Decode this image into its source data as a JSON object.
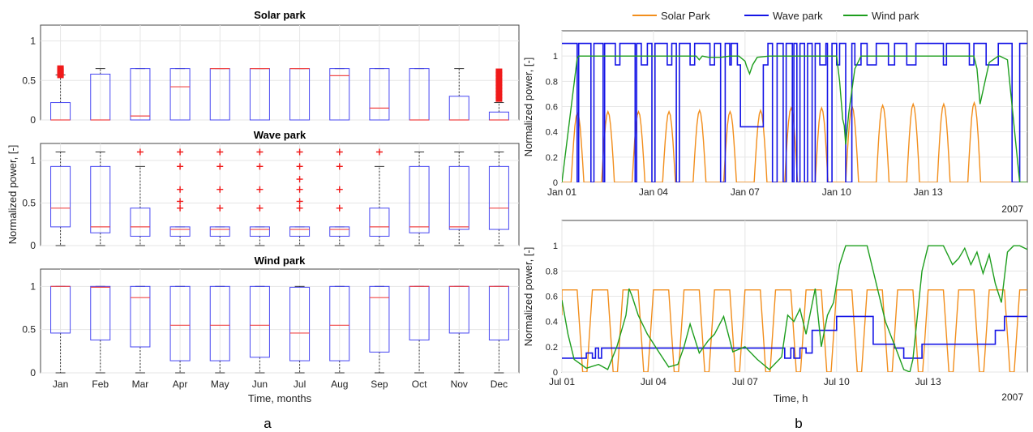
{
  "colors": {
    "solar": "#f28e1c",
    "wave": "#1515e6",
    "wind": "#1e9e1e",
    "box": "#4747f2",
    "median": "#f04848",
    "outlier": "#f01a1a",
    "axis": "#444444",
    "grid": "#e6e6e6"
  },
  "panel_labels": [
    "a",
    "b"
  ],
  "labels": {
    "left_ylabel": "Normalized power, [-]",
    "left_xlabel": "Time, months",
    "right_ylabel": "Normalized power, [-]",
    "right_xlabel": "Time, h"
  },
  "chart_data": [
    {
      "type": "box",
      "title": "Solar park",
      "categories": [
        "Jan",
        "Feb",
        "Mar",
        "Apr",
        "May",
        "Jun",
        "Jul",
        "Aug",
        "Sep",
        "Oct",
        "Nov",
        "Dec"
      ],
      "ylim": [
        0,
        1.2
      ],
      "yticks": [
        0,
        0.5,
        1
      ],
      "yticklabels": [
        "0",
        "0.5",
        "1"
      ],
      "grid": true,
      "boxes": [
        {
          "q1": 0,
          "med": 0,
          "q3": 0.22,
          "wlo": 0,
          "whi": 0.57,
          "out": [
            0.56,
            0.58,
            0.6,
            0.62,
            0.64,
            0.66
          ]
        },
        {
          "q1": 0,
          "med": 0,
          "q3": 0.58,
          "wlo": 0,
          "whi": 0.65,
          "out": []
        },
        {
          "q1": 0,
          "med": 0.05,
          "q3": 0.65,
          "wlo": 0,
          "whi": 0.65,
          "out": []
        },
        {
          "q1": 0,
          "med": 0.42,
          "q3": 0.65,
          "wlo": 0,
          "whi": 0.65,
          "out": []
        },
        {
          "q1": 0,
          "med": 0.65,
          "q3": 0.65,
          "wlo": 0,
          "whi": 0.65,
          "out": []
        },
        {
          "q1": 0,
          "med": 0.65,
          "q3": 0.65,
          "wlo": 0,
          "whi": 0.65,
          "out": []
        },
        {
          "q1": 0,
          "med": 0.65,
          "q3": 0.65,
          "wlo": 0,
          "whi": 0.65,
          "out": []
        },
        {
          "q1": 0,
          "med": 0.56,
          "q3": 0.65,
          "wlo": 0,
          "whi": 0.65,
          "out": []
        },
        {
          "q1": 0,
          "med": 0.15,
          "q3": 0.65,
          "wlo": 0,
          "whi": 0.65,
          "out": []
        },
        {
          "q1": 0,
          "med": 0,
          "q3": 0.65,
          "wlo": 0,
          "whi": 0.65,
          "out": []
        },
        {
          "q1": 0,
          "med": 0,
          "q3": 0.3,
          "wlo": 0,
          "whi": 0.65,
          "out": []
        },
        {
          "q1": 0,
          "med": 0,
          "q3": 0.1,
          "wlo": 0,
          "whi": 0.22,
          "out": [
            0.26,
            0.3,
            0.34,
            0.38,
            0.42,
            0.46,
            0.5,
            0.54,
            0.58,
            0.62
          ]
        }
      ]
    },
    {
      "type": "box",
      "title": "Wave park",
      "categories": [
        "Jan",
        "Feb",
        "Mar",
        "Apr",
        "May",
        "Jun",
        "Jul",
        "Aug",
        "Sep",
        "Oct",
        "Nov",
        "Dec"
      ],
      "ylim": [
        0,
        1.2
      ],
      "yticks": [
        0,
        0.5,
        1
      ],
      "yticklabels": [
        "0",
        "0.5",
        "1"
      ],
      "grid": true,
      "boxes": [
        {
          "q1": 0.22,
          "med": 0.44,
          "q3": 0.93,
          "wlo": 0,
          "whi": 1.1,
          "out": []
        },
        {
          "q1": 0.15,
          "med": 0.22,
          "q3": 0.93,
          "wlo": 0,
          "whi": 1.1,
          "out": []
        },
        {
          "q1": 0.11,
          "med": 0.22,
          "q3": 0.44,
          "wlo": 0,
          "whi": 0.93,
          "out": [
            1.1
          ]
        },
        {
          "q1": 0.11,
          "med": 0.19,
          "q3": 0.22,
          "wlo": 0,
          "whi": 0.22,
          "out": [
            0.44,
            0.52,
            0.66,
            0.93,
            1.1
          ]
        },
        {
          "q1": 0.11,
          "med": 0.19,
          "q3": 0.22,
          "wlo": 0,
          "whi": 0.22,
          "out": [
            0.44,
            0.66,
            0.93,
            1.1
          ]
        },
        {
          "q1": 0.11,
          "med": 0.19,
          "q3": 0.22,
          "wlo": 0,
          "whi": 0.22,
          "out": [
            0.44,
            0.66,
            0.93,
            1.1
          ]
        },
        {
          "q1": 0.11,
          "med": 0.19,
          "q3": 0.22,
          "wlo": 0,
          "whi": 0.22,
          "out": [
            0.44,
            0.52,
            0.66,
            0.78,
            0.93,
            1.1
          ]
        },
        {
          "q1": 0.11,
          "med": 0.19,
          "q3": 0.22,
          "wlo": 0,
          "whi": 0.22,
          "out": [
            0.44,
            0.66,
            0.93,
            1.1
          ]
        },
        {
          "q1": 0.11,
          "med": 0.22,
          "q3": 0.44,
          "wlo": 0,
          "whi": 0.93,
          "out": [
            1.1
          ]
        },
        {
          "q1": 0.15,
          "med": 0.22,
          "q3": 0.93,
          "wlo": 0,
          "whi": 1.1,
          "out": []
        },
        {
          "q1": 0.19,
          "med": 0.22,
          "q3": 0.93,
          "wlo": 0,
          "whi": 1.1,
          "out": []
        },
        {
          "q1": 0.19,
          "med": 0.44,
          "q3": 0.93,
          "wlo": 0,
          "whi": 1.1,
          "out": []
        }
      ]
    },
    {
      "type": "box",
      "title": "Wind park",
      "categories": [
        "Jan",
        "Feb",
        "Mar",
        "Apr",
        "May",
        "Jun",
        "Jul",
        "Aug",
        "Sep",
        "Oct",
        "Nov",
        "Dec"
      ],
      "ylim": [
        0,
        1.2
      ],
      "yticks": [
        0,
        0.5,
        1
      ],
      "yticklabels": [
        "0",
        "0.5",
        "1"
      ],
      "grid": true,
      "boxes": [
        {
          "q1": 0.46,
          "med": 1.0,
          "q3": 1.0,
          "wlo": 0,
          "whi": 1.0,
          "out": []
        },
        {
          "q1": 0.38,
          "med": 0.99,
          "q3": 1.0,
          "wlo": 0,
          "whi": 1.0,
          "out": []
        },
        {
          "q1": 0.3,
          "med": 0.87,
          "q3": 1.0,
          "wlo": 0,
          "whi": 1.0,
          "out": []
        },
        {
          "q1": 0.14,
          "med": 0.55,
          "q3": 1.0,
          "wlo": 0,
          "whi": 1.0,
          "out": []
        },
        {
          "q1": 0.14,
          "med": 0.55,
          "q3": 1.0,
          "wlo": 0,
          "whi": 1.0,
          "out": []
        },
        {
          "q1": 0.18,
          "med": 0.55,
          "q3": 1.0,
          "wlo": 0,
          "whi": 1.0,
          "out": []
        },
        {
          "q1": 0.14,
          "med": 0.46,
          "q3": 0.99,
          "wlo": 0,
          "whi": 1.0,
          "out": []
        },
        {
          "q1": 0.14,
          "med": 0.55,
          "q3": 1.0,
          "wlo": 0,
          "whi": 1.0,
          "out": []
        },
        {
          "q1": 0.24,
          "med": 0.87,
          "q3": 1.0,
          "wlo": 0,
          "whi": 1.0,
          "out": []
        },
        {
          "q1": 0.38,
          "med": 1.0,
          "q3": 1.0,
          "wlo": 0,
          "whi": 1.0,
          "out": []
        },
        {
          "q1": 0.46,
          "med": 1.0,
          "q3": 1.0,
          "wlo": 0,
          "whi": 1.0,
          "out": []
        },
        {
          "q1": 0.38,
          "med": 1.0,
          "q3": 1.0,
          "wlo": 0,
          "whi": 1.0,
          "out": []
        }
      ]
    },
    {
      "type": "line",
      "xlim": [
        0,
        15.25
      ],
      "ylim": [
        0,
        1.2
      ],
      "yticks": [
        0,
        0.2,
        0.4,
        0.6,
        0.8,
        1
      ],
      "yticklabels": [
        "0",
        "0.2",
        "0.4",
        "0.6",
        "0.8",
        "1"
      ],
      "xticks": [
        0,
        3,
        6,
        9,
        12
      ],
      "xticklabels": [
        "Jan 01",
        "Jan 04",
        "Jan 07",
        "Jan 10",
        "Jan 13"
      ],
      "year_label": "2007",
      "grid": true,
      "legend": {
        "placement": "top",
        "entries": [
          "Solar Park",
          "Wave park",
          "Wind park"
        ]
      },
      "series": [
        {
          "name": "Solar Park",
          "kind": "solar",
          "peaks": [
            0.55,
            0.56,
            0.56,
            0.56,
            0.57,
            0.56,
            0.57,
            0.59,
            0.59,
            0.6,
            0.61,
            0.62,
            0.62,
            0.63
          ]
        },
        {
          "name": "Wave park",
          "kind": "step",
          "x": [
            0,
            0.5,
            0.55,
            0.95,
            1.05,
            1.35,
            1.4,
            1.75,
            1.9,
            2.4,
            2.45,
            2.6,
            2.8,
            2.95,
            3.05,
            3.45,
            3.6,
            3.75,
            3.85,
            4.2,
            4.35,
            4.85,
            5.0,
            5.2,
            5.35,
            5.5,
            5.55,
            5.75,
            5.85,
            6.0,
            6.05,
            6.6,
            6.75,
            6.9,
            7.05,
            7.25,
            7.35,
            7.55,
            7.6,
            7.7,
            7.8,
            7.95,
            8.05,
            8.2,
            8.3,
            8.45,
            8.65,
            8.7,
            8.85,
            9.0,
            9.1,
            9.3,
            9.5,
            9.6,
            9.8,
            10.0,
            10.3,
            10.4,
            10.7,
            10.9,
            11.1,
            11.3,
            11.6,
            11.9,
            12.1,
            12.5,
            12.6,
            12.95,
            13.0,
            13.35,
            13.5,
            13.9,
            14.3,
            14.6,
            14.75,
            15.0,
            15.25
          ],
          "y": [
            1.1,
            0,
            1.1,
            0,
            1.1,
            0,
            1.1,
            0.93,
            1.1,
            0,
            1.1,
            0.93,
            1.1,
            0,
            1.1,
            0.93,
            1.1,
            0,
            1.1,
            0.93,
            1.1,
            0.93,
            1.1,
            0,
            1.1,
            0.93,
            1.1,
            0.93,
            0.44,
            0.44,
            0.44,
            0.93,
            1.1,
            0,
            1.1,
            0,
            1.1,
            0,
            1.1,
            0,
            1.1,
            0,
            1.1,
            0,
            1.1,
            0.93,
            1.1,
            0,
            1.1,
            0.93,
            1.1,
            0,
            1.1,
            0.93,
            1.1,
            0.93,
            1.1,
            1.1,
            0.93,
            1.1,
            1.1,
            0.93,
            1.1,
            1.1,
            1.1,
            0.93,
            1.1,
            1.1,
            1.1,
            0.93,
            1.1,
            0.93,
            1.1,
            1.1,
            0,
            1.1,
            1.1
          ]
        },
        {
          "name": "Wind park",
          "kind": "line",
          "x": [
            0,
            0.5,
            0.55,
            0.6,
            0.7,
            1.5,
            2.5,
            3.5,
            4.4,
            4.5,
            4.6,
            4.8,
            5.2,
            5.5,
            5.8,
            6.0,
            6.05,
            6.15,
            6.25,
            6.4,
            6.8,
            8.0,
            8.6,
            9.0,
            9.1,
            9.2,
            9.25,
            9.3,
            9.4,
            9.6,
            9.8,
            10.0,
            10.2,
            11.0,
            12.0,
            12.5,
            13.0,
            13.2,
            13.5,
            13.6,
            13.7,
            14.0,
            14.3,
            14.35,
            14.6,
            15.0,
            15.1,
            15.25
          ],
          "y": [
            0,
            0.98,
            1.0,
            1.0,
            1.0,
            1.0,
            1.0,
            1.0,
            1.0,
            0.97,
            1.0,
            0.99,
            0.99,
            1.0,
            1.0,
            0.96,
            0.92,
            0.86,
            0.93,
            0.99,
            1.0,
            1.0,
            1.0,
            1.0,
            0.8,
            0.5,
            0.45,
            0.3,
            0.55,
            0.9,
            1.0,
            1.0,
            1.0,
            1.0,
            1.0,
            1.0,
            1.0,
            1.0,
            1.0,
            0.9,
            0.62,
            0.95,
            1.0,
            1.0,
            0.97,
            0,
            0,
            0
          ]
        }
      ]
    },
    {
      "type": "line",
      "xlim": [
        0,
        15.25
      ],
      "ylim": [
        0,
        1.2
      ],
      "yticks": [
        0,
        0.2,
        0.4,
        0.6,
        0.8,
        1
      ],
      "yticklabels": [
        "0",
        "0.2",
        "0.4",
        "0.6",
        "0.8",
        "1"
      ],
      "xticks": [
        0,
        3,
        6,
        9,
        12
      ],
      "xticklabels": [
        "Jul 01",
        "Jul 04",
        "Jul 07",
        "Jul 10",
        "Jul 13"
      ],
      "year_label": "2007",
      "grid": true,
      "series": [
        {
          "name": "Solar Park",
          "kind": "solar_plateau",
          "level": 0.65
        },
        {
          "name": "Wave park",
          "kind": "step",
          "x": [
            0,
            0.7,
            0.8,
            1.0,
            1.1,
            1.2,
            1.3,
            1.5,
            1.7,
            5.0,
            5.8,
            6.0,
            7.2,
            7.3,
            7.5,
            7.6,
            7.8,
            8.0,
            8.2,
            9.0,
            9.7,
            10.2,
            10.9,
            11.2,
            11.8,
            12.0,
            14.2,
            14.5,
            15.0,
            15.25
          ],
          "y": [
            0.11,
            0.11,
            0.15,
            0.11,
            0.19,
            0.11,
            0.19,
            0.19,
            0.19,
            0.19,
            0.19,
            0.19,
            0.19,
            0.11,
            0.19,
            0.11,
            0.19,
            0.15,
            0.33,
            0.44,
            0.44,
            0.22,
            0.19,
            0.11,
            0.22,
            0.22,
            0.33,
            0.44,
            0.44,
            0.44
          ]
        },
        {
          "name": "Wind park",
          "kind": "line",
          "x": [
            0,
            0.2,
            0.4,
            0.8,
            1.2,
            1.5,
            1.8,
            2.1,
            2.2,
            2.3,
            2.5,
            2.8,
            3.2,
            3.5,
            3.8,
            4.0,
            4.2,
            4.5,
            4.8,
            5.0,
            5.3,
            5.6,
            6.0,
            6.4,
            6.8,
            7.2,
            7.4,
            7.6,
            7.8,
            8.0,
            8.3,
            8.5,
            8.7,
            8.9,
            9.1,
            9.3,
            9.5,
            10.0,
            10.3,
            10.6,
            11.0,
            11.2,
            11.4,
            11.5,
            11.8,
            12.0,
            12.5,
            12.8,
            13.0,
            13.2,
            13.4,
            13.6,
            13.8,
            14.0,
            14.2,
            14.4,
            14.6,
            14.8,
            15.0,
            15.25
          ],
          "y": [
            0.57,
            0.3,
            0.1,
            0.03,
            0.06,
            0.02,
            0.2,
            0.45,
            0.66,
            0.6,
            0.45,
            0.3,
            0.15,
            0.04,
            0.06,
            0.2,
            0.38,
            0.15,
            0.25,
            0.3,
            0.44,
            0.16,
            0.2,
            0.1,
            0.02,
            0.12,
            0.45,
            0.4,
            0.5,
            0.3,
            0.66,
            0.2,
            0.45,
            0.55,
            0.85,
            1.0,
            1.0,
            1.0,
            0.7,
            0.4,
            0.15,
            0.02,
            0.0,
            0.1,
            0.8,
            1.0,
            1.0,
            0.85,
            0.9,
            0.98,
            0.85,
            0.95,
            0.78,
            0.93,
            0.7,
            0.55,
            0.95,
            1.0,
            1.0,
            0.97
          ]
        }
      ]
    }
  ]
}
